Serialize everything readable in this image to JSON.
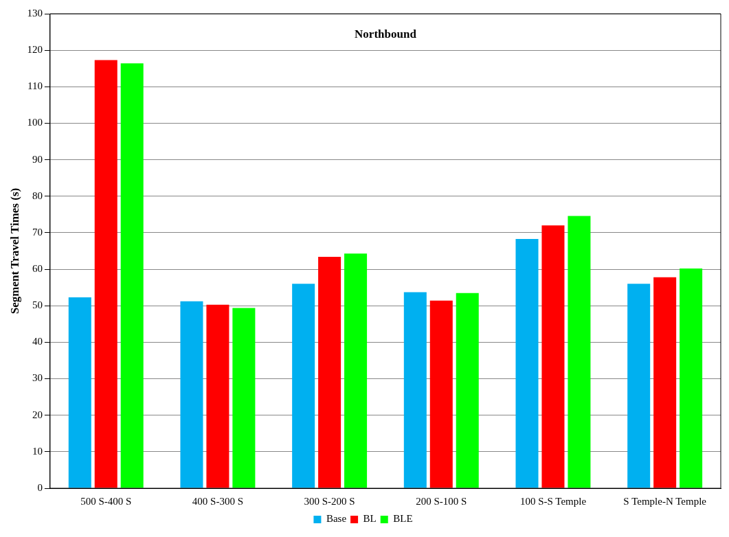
{
  "chart_data": {
    "type": "bar",
    "title": "Northbound",
    "ylabel": "Segment Travel Times (s)",
    "categories": [
      "500 S-400 S",
      "400 S-300 S",
      "300 S-200 S",
      "200 S-100 S",
      "100 S-S Temple",
      "S Temple-N Temple"
    ],
    "series": [
      {
        "name": "Base",
        "color": "#00b0f0",
        "values": [
          52.3,
          51.2,
          56,
          53.7,
          68.3,
          56
        ]
      },
      {
        "name": "BL",
        "color": "#ff0000",
        "values": [
          117.3,
          50.3,
          63.4,
          51.4,
          72,
          57.8
        ]
      },
      {
        "name": "BLE",
        "color": "#00ff00",
        "values": [
          116.4,
          49.4,
          64.3,
          53.5,
          74.6,
          60.2
        ]
      }
    ],
    "ylim": [
      0,
      130
    ],
    "yticks": [
      0,
      10,
      20,
      30,
      40,
      50,
      60,
      70,
      80,
      90,
      100,
      110,
      120,
      130
    ],
    "grid": "y",
    "legend": "bottom"
  }
}
